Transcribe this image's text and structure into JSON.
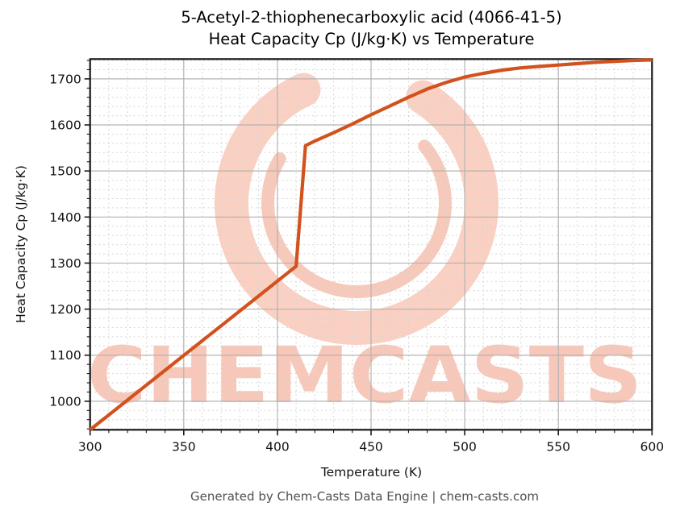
{
  "header": {
    "title_line1": "5-Acetyl-2-thiophenecarboxylic acid (4066-41-5)",
    "title_line2": "Heat Capacity Cp (J/kg·K) vs Temperature"
  },
  "footer": {
    "text": "Generated by Chem-Casts Data Engine | chem-casts.com"
  },
  "watermark": {
    "text": "CHEMCASTS",
    "logo": "chemcasts-ring-logo",
    "arc_color": "#f8cbbb",
    "swoosh_color": "#f5bfae",
    "text_color": "#f6c1b0"
  },
  "chart_data": {
    "type": "line",
    "title": "5-Acetyl-2-thiophenecarboxylic acid (4066-41-5) Heat Capacity Cp (J/kg·K) vs Temperature",
    "xlabel": "Temperature (K)",
    "ylabel": "Heat Capacity Cp (J/kg·K)",
    "xlim": [
      300,
      600
    ],
    "ylim": [
      938,
      1743
    ],
    "x_ticks": [
      300,
      350,
      400,
      450,
      500,
      550,
      600
    ],
    "y_ticks": [
      1000,
      1100,
      1200,
      1300,
      1400,
      1500,
      1600,
      1700
    ],
    "x_minor_step": 10,
    "y_minor_step": 20,
    "grid": "major-solid-minor-dashed",
    "legend": "none",
    "line_color": "#d2521e",
    "series": [
      {
        "name": "Heat Capacity Cp",
        "x": [
          300,
          410,
          415,
          420,
          430,
          440,
          450,
          460,
          470,
          480,
          490,
          500,
          510,
          520,
          530,
          540,
          550,
          560,
          570,
          580,
          590,
          600
        ],
        "y": [
          938,
          1293,
          1555,
          1565,
          1583,
          1602,
          1622,
          1641,
          1660,
          1678,
          1692,
          1704,
          1712,
          1719,
          1724,
          1727,
          1730,
          1733,
          1736,
          1738,
          1740,
          1741
        ]
      }
    ]
  }
}
